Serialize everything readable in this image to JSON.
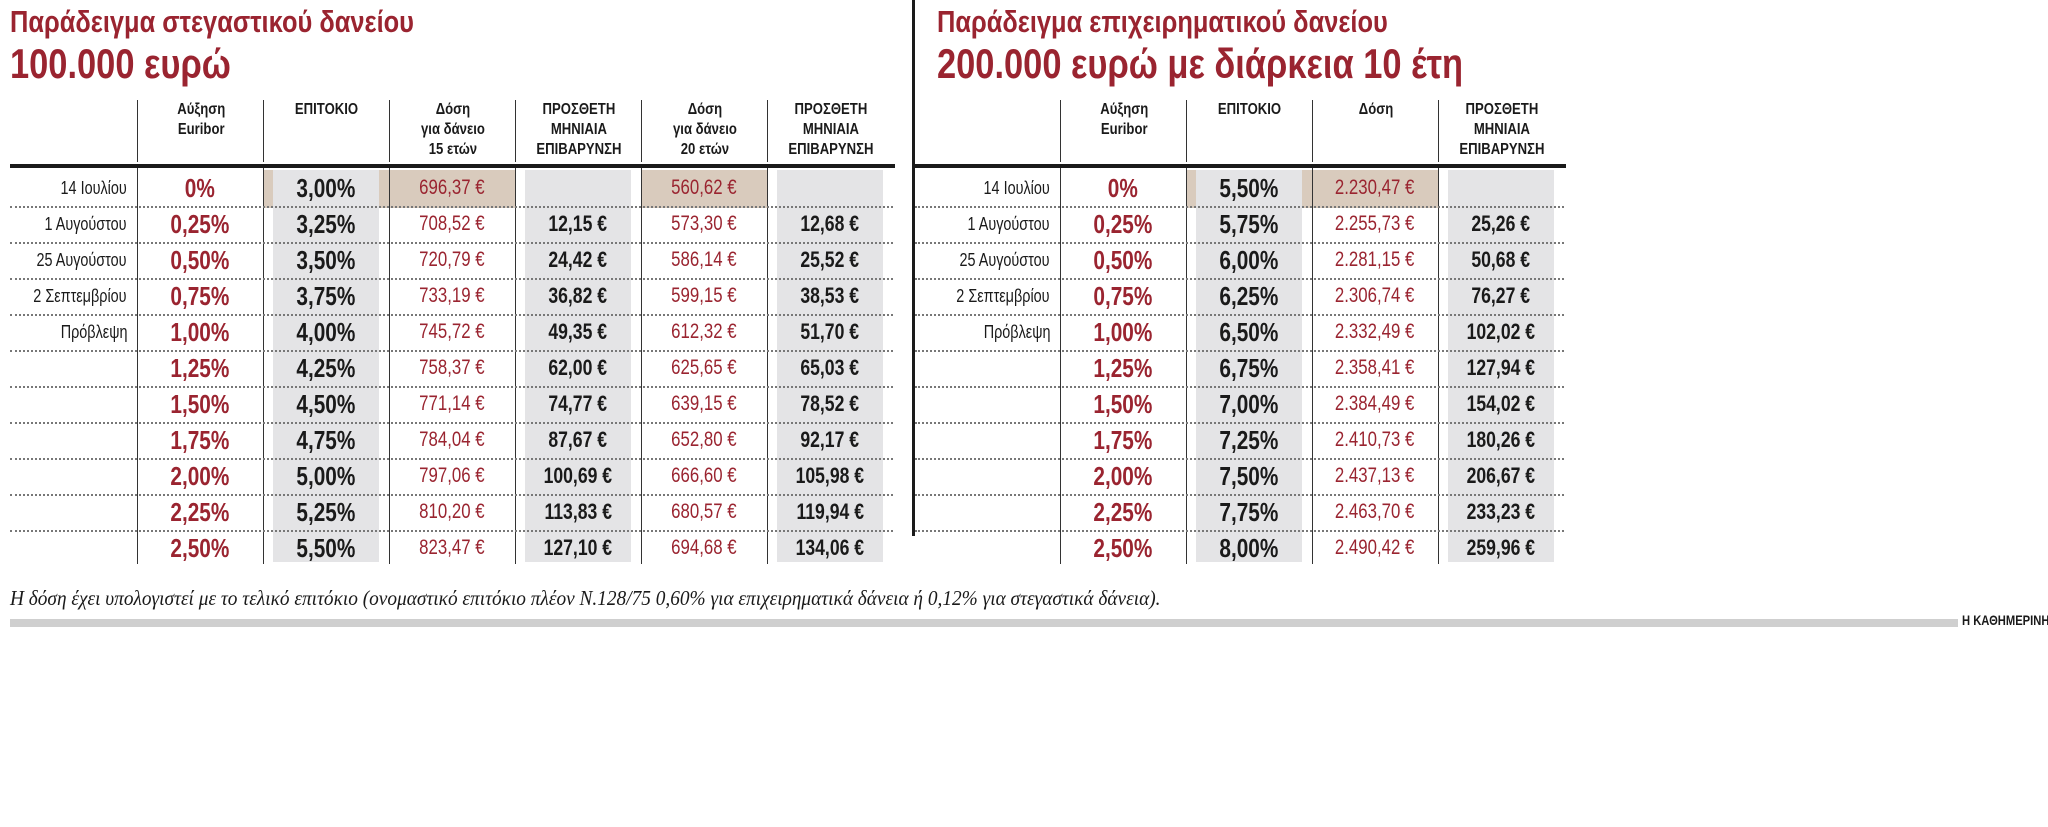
{
  "colors": {
    "accent": "#9a2430",
    "column_shade": "#e4e4e6",
    "highlight": "#d9cbbd"
  },
  "chart_data": [
    {
      "type": "table",
      "title": "Παράδειγμα στεγαστικού δανείου",
      "subtitle": "100.000 ευρώ",
      "columns": [
        "Αύξηση\nEuribor",
        "ΕΠΙΤΟΚΙΟ",
        "Δόση\nγια δάνειο\n15 ετών",
        "ΠΡΟΣΘΕΤΗ\nΜΗΝΙΑΙΑ\nΕΠΙΒΑΡΥΝΣΗ",
        "Δόση\nγια δάνειο\n20 ετών",
        "ΠΡΟΣΘΕΤΗ\nΜΗΝΙΑΙΑ\nΕΠΙΒΑΡΥΝΣΗ"
      ],
      "rows": [
        [
          "14 Ιουλίου",
          "0%",
          "3,00%",
          "696,37 €",
          "",
          "560,62 €",
          ""
        ],
        [
          "1 Αυγούστου",
          "0,25%",
          "3,25%",
          "708,52 €",
          "12,15 €",
          "573,30 €",
          "12,68 €"
        ],
        [
          "25 Αυγούστου",
          "0,50%",
          "3,50%",
          "720,79 €",
          "24,42 €",
          "586,14 €",
          "25,52 €"
        ],
        [
          "2 Σεπτεμβρίου",
          "0,75%",
          "3,75%",
          "733,19 €",
          "36,82 €",
          "599,15 €",
          "38,53 €"
        ],
        [
          "Πρόβλεψη",
          "1,00%",
          "4,00%",
          "745,72 €",
          "49,35 €",
          "612,32 €",
          "51,70 €"
        ],
        [
          "",
          "1,25%",
          "4,25%",
          "758,37 €",
          "62,00 €",
          "625,65 €",
          "65,03 €"
        ],
        [
          "",
          "1,50%",
          "4,50%",
          "771,14 €",
          "74,77 €",
          "639,15 €",
          "78,52 €"
        ],
        [
          "",
          "1,75%",
          "4,75%",
          "784,04 €",
          "87,67 €",
          "652,80 €",
          "92,17 €"
        ],
        [
          "",
          "2,00%",
          "5,00%",
          "797,06 €",
          "100,69 €",
          "666,60 €",
          "105,98 €"
        ],
        [
          "",
          "2,25%",
          "5,25%",
          "810,20 €",
          "113,83 €",
          "680,57 €",
          "119,94 €"
        ],
        [
          "",
          "2,50%",
          "5,50%",
          "823,47 €",
          "127,10 €",
          "694,68 €",
          "134,06 €"
        ]
      ]
    },
    {
      "type": "table",
      "title": "Παράδειγμα επιχειρηματικού δανείου",
      "subtitle": "200.000 ευρώ με διάρκεια 10 έτη",
      "columns": [
        "Αύξηση\nEuribor",
        "ΕΠΙΤΟΚΙΟ",
        "Δόση",
        "ΠΡΟΣΘΕΤΗ\nΜΗΝΙΑΙΑ\nΕΠΙΒΑΡΥΝΣΗ"
      ],
      "rows": [
        [
          "14 Ιουλίου",
          "0%",
          "5,50%",
          "2.230,47 €",
          ""
        ],
        [
          "1 Αυγούστου",
          "0,25%",
          "5,75%",
          "2.255,73 €",
          "25,26 €"
        ],
        [
          "25 Αυγούστου",
          "0,50%",
          "6,00%",
          "2.281,15 €",
          "50,68 €"
        ],
        [
          "2 Σεπτεμβρίου",
          "0,75%",
          "6,25%",
          "2.306,74 €",
          "76,27 €"
        ],
        [
          "Πρόβλεψη",
          "1,00%",
          "6,50%",
          "2.332,49 €",
          "102,02 €"
        ],
        [
          "",
          "1,25%",
          "6,75%",
          "2.358,41 €",
          "127,94 €"
        ],
        [
          "",
          "1,50%",
          "7,00%",
          "2.384,49 €",
          "154,02 €"
        ],
        [
          "",
          "1,75%",
          "7,25%",
          "2.410,73 €",
          "180,26 €"
        ],
        [
          "",
          "2,00%",
          "7,50%",
          "2.437,13 €",
          "206,67 €"
        ],
        [
          "",
          "2,25%",
          "7,75%",
          "2.463,70 €",
          "233,23 €"
        ],
        [
          "",
          "2,50%",
          "8,00%",
          "2.490,42 €",
          "259,96 €"
        ]
      ]
    }
  ],
  "footnote": "Η δόση έχει υπολογιστεί με το τελικό επιτόκιο (ονομαστικό επιτόκιο πλέον Ν.128/75 0,60% για επιχειρηματικά δάνεια ή 0,12% για στεγαστικά δάνεια).",
  "brand": "Η ΚΑΘΗΜΕΡΙΝΗ"
}
